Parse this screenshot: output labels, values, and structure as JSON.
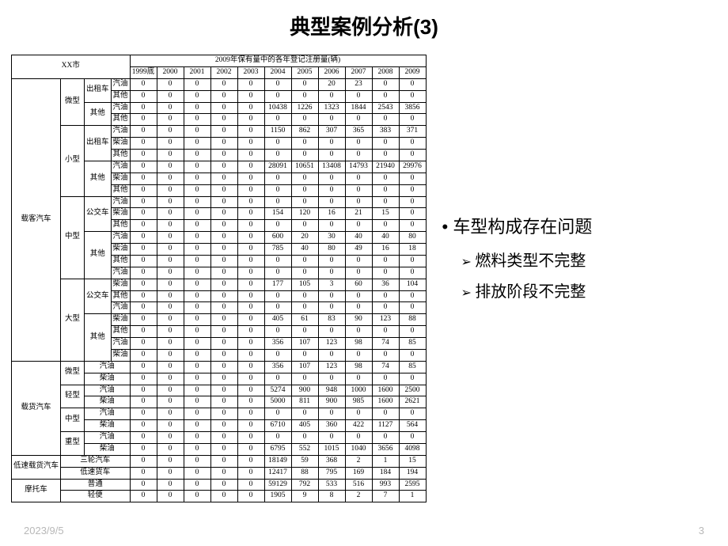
{
  "title": "典型案例分析(3)",
  "footer": {
    "date": "2023/9/5",
    "page": "3"
  },
  "bullets": {
    "main": "车型构成存在问题",
    "subs": [
      "燃料类型不完整",
      "排放阶段不完整"
    ]
  },
  "table": {
    "corner": "XX市",
    "super_header": "2009年保有量中的各年登记注册量(辆)",
    "years": [
      "1999底",
      "2000",
      "2001",
      "2002",
      "2003",
      "2004",
      "2005",
      "2006",
      "2007",
      "2008",
      "2009"
    ],
    "fuels": {
      "gas": "汽油",
      "diesel": "柴油",
      "other": "其他"
    },
    "groups": [
      {
        "cat1": "载客汽车",
        "cat1_rows": 24,
        "subs": [
          {
            "cat2": "微型",
            "cat2_rows": 4,
            "subs": [
              {
                "cat3": "出租车",
                "cat3_rows": 2,
                "rows": [
                  {
                    "f": "汽油",
                    "v": [
                      0,
                      0,
                      0,
                      0,
                      0,
                      0,
                      0,
                      20,
                      23,
                      0,
                      0
                    ]
                  },
                  {
                    "f": "其他",
                    "v": [
                      0,
                      0,
                      0,
                      0,
                      0,
                      0,
                      0,
                      0,
                      0,
                      0,
                      0
                    ]
                  }
                ]
              },
              {
                "cat3": "其他",
                "cat3_rows": 2,
                "rows": [
                  {
                    "f": "汽油",
                    "v": [
                      0,
                      0,
                      0,
                      0,
                      0,
                      10438,
                      1226,
                      1323,
                      1844,
                      2543,
                      3856
                    ]
                  },
                  {
                    "f": "其他",
                    "v": [
                      0,
                      0,
                      0,
                      0,
                      0,
                      0,
                      0,
                      0,
                      0,
                      0,
                      0
                    ]
                  }
                ]
              }
            ]
          },
          {
            "cat2": "小型",
            "cat2_rows": 6,
            "subs": [
              {
                "cat3": "出租车",
                "cat3_rows": 3,
                "rows": [
                  {
                    "f": "汽油",
                    "v": [
                      0,
                      0,
                      0,
                      0,
                      0,
                      1150,
                      862,
                      307,
                      365,
                      383,
                      371
                    ]
                  },
                  {
                    "f": "柴油",
                    "v": [
                      0,
                      0,
                      0,
                      0,
                      0,
                      0,
                      0,
                      0,
                      0,
                      0,
                      0
                    ]
                  },
                  {
                    "f": "其他",
                    "v": [
                      0,
                      0,
                      0,
                      0,
                      0,
                      0,
                      0,
                      0,
                      0,
                      0,
                      0
                    ]
                  }
                ]
              },
              {
                "cat3": "其他",
                "cat3_rows": 3,
                "rows": [
                  {
                    "f": "汽油",
                    "v": [
                      0,
                      0,
                      0,
                      0,
                      0,
                      28091,
                      10651,
                      13408,
                      14793,
                      21940,
                      29976
                    ]
                  },
                  {
                    "f": "柴油",
                    "v": [
                      0,
                      0,
                      0,
                      0,
                      0,
                      0,
                      0,
                      0,
                      0,
                      0,
                      0
                    ]
                  },
                  {
                    "f": "其他",
                    "v": [
                      0,
                      0,
                      0,
                      0,
                      0,
                      0,
                      0,
                      0,
                      0,
                      0,
                      0
                    ]
                  }
                ]
              }
            ]
          },
          {
            "cat2": "中型",
            "cat2_rows": 7,
            "subs": [
              {
                "cat3": "公交车",
                "cat3_rows": 3,
                "rows": [
                  {
                    "f": "汽油",
                    "v": [
                      0,
                      0,
                      0,
                      0,
                      0,
                      0,
                      0,
                      0,
                      0,
                      0,
                      0
                    ]
                  },
                  {
                    "f": "柴油",
                    "v": [
                      0,
                      0,
                      0,
                      0,
                      0,
                      154,
                      120,
                      16,
                      21,
                      15,
                      0
                    ]
                  },
                  {
                    "f": "其他",
                    "v": [
                      0,
                      0,
                      0,
                      0,
                      0,
                      0,
                      0,
                      0,
                      0,
                      0,
                      0
                    ]
                  }
                ]
              },
              {
                "cat3": "其他",
                "cat3_rows": 4,
                "rows": [
                  {
                    "f": "汽油",
                    "v": [
                      0,
                      0,
                      0,
                      0,
                      0,
                      600,
                      20,
                      30,
                      40,
                      40,
                      80
                    ]
                  },
                  {
                    "f": "柴油",
                    "v": [
                      0,
                      0,
                      0,
                      0,
                      0,
                      785,
                      40,
                      80,
                      49,
                      16,
                      18
                    ]
                  },
                  {
                    "f": "其他",
                    "v": [
                      0,
                      0,
                      0,
                      0,
                      0,
                      0,
                      0,
                      0,
                      0,
                      0,
                      0
                    ]
                  },
                  {
                    "f": "汽油",
                    "v": [
                      0,
                      0,
                      0,
                      0,
                      0,
                      0,
                      0,
                      0,
                      0,
                      0,
                      0
                    ]
                  }
                ]
              }
            ]
          },
          {
            "cat2": "大型",
            "cat2_rows": 7,
            "subs": [
              {
                "cat3": "公交车",
                "cat3_rows": 3,
                "rows": [
                  {
                    "f": "柴油",
                    "v": [
                      0,
                      0,
                      0,
                      0,
                      0,
                      177,
                      105,
                      3,
                      60,
                      36,
                      104
                    ]
                  },
                  {
                    "f": "其他",
                    "v": [
                      0,
                      0,
                      0,
                      0,
                      0,
                      0,
                      0,
                      0,
                      0,
                      0,
                      0
                    ]
                  },
                  {
                    "f": "汽油",
                    "v": [
                      0,
                      0,
                      0,
                      0,
                      0,
                      0,
                      0,
                      0,
                      0,
                      0,
                      0
                    ]
                  }
                ]
              },
              {
                "cat3": "其他",
                "cat3_rows": 4,
                "rows": [
                  {
                    "f": "柴油",
                    "v": [
                      0,
                      0,
                      0,
                      0,
                      0,
                      405,
                      61,
                      83,
                      90,
                      123,
                      88
                    ]
                  },
                  {
                    "f": "其他",
                    "v": [
                      0,
                      0,
                      0,
                      0,
                      0,
                      0,
                      0,
                      0,
                      0,
                      0,
                      0
                    ]
                  },
                  {
                    "f": "汽油",
                    "v": [
                      0,
                      0,
                      0,
                      0,
                      0,
                      356,
                      107,
                      123,
                      98,
                      74,
                      85
                    ]
                  },
                  {
                    "f": "柴油",
                    "v": [
                      0,
                      0,
                      0,
                      0,
                      0,
                      0,
                      0,
                      0,
                      0,
                      0,
                      0
                    ]
                  }
                ]
              }
            ]
          }
        ]
      },
      {
        "cat1": "载货汽车",
        "cat1_rows": 8,
        "subs": [
          {
            "cat2": "微型",
            "cat2_rows": 2,
            "subs": [
              {
                "cat3": "",
                "cat3_rows": 2,
                "merge": true,
                "rows": [
                  {
                    "f": "汽油",
                    "v": [
                      0,
                      0,
                      0,
                      0,
                      0,
                      356,
                      107,
                      123,
                      98,
                      74,
                      85
                    ]
                  },
                  {
                    "f": "柴油",
                    "v": [
                      0,
                      0,
                      0,
                      0,
                      0,
                      0,
                      0,
                      0,
                      0,
                      0,
                      0
                    ]
                  }
                ]
              }
            ]
          },
          {
            "cat2": "轻型",
            "cat2_rows": 2,
            "subs": [
              {
                "cat3": "",
                "cat3_rows": 2,
                "merge": true,
                "rows": [
                  {
                    "f": "汽油",
                    "v": [
                      0,
                      0,
                      0,
                      0,
                      0,
                      5274,
                      900,
                      948,
                      1000,
                      1600,
                      2500
                    ]
                  },
                  {
                    "f": "柴油",
                    "v": [
                      0,
                      0,
                      0,
                      0,
                      0,
                      5000,
                      811,
                      900,
                      985,
                      1600,
                      2621
                    ]
                  }
                ]
              }
            ]
          },
          {
            "cat2": "中型",
            "cat2_rows": 2,
            "subs": [
              {
                "cat3": "",
                "cat3_rows": 2,
                "merge": true,
                "rows": [
                  {
                    "f": "汽油",
                    "v": [
                      0,
                      0,
                      0,
                      0,
                      0,
                      0,
                      0,
                      0,
                      0,
                      0,
                      0
                    ]
                  },
                  {
                    "f": "柴油",
                    "v": [
                      0,
                      0,
                      0,
                      0,
                      0,
                      6710,
                      405,
                      360,
                      422,
                      1127,
                      564
                    ]
                  }
                ]
              }
            ]
          },
          {
            "cat2": "重型",
            "cat2_rows": 2,
            "subs": [
              {
                "cat3": "",
                "cat3_rows": 2,
                "merge": true,
                "rows": [
                  {
                    "f": "汽油",
                    "v": [
                      0,
                      0,
                      0,
                      0,
                      0,
                      0,
                      0,
                      0,
                      0,
                      0,
                      0
                    ]
                  },
                  {
                    "f": "柴油",
                    "v": [
                      0,
                      0,
                      0,
                      0,
                      0,
                      6795,
                      552,
                      1015,
                      1040,
                      3656,
                      4098
                    ]
                  }
                ]
              }
            ]
          }
        ]
      },
      {
        "cat1": "低速载货汽车",
        "cat1_rows": 2,
        "subs": [
          {
            "cat2": "三轮汽车",
            "cat2_rows": 1,
            "full": true,
            "rows": [
              {
                "v": [
                  0,
                  0,
                  0,
                  0,
                  0,
                  18149,
                  59,
                  368,
                  2,
                  1,
                  15
                ]
              }
            ]
          },
          {
            "cat2": "低速货车",
            "cat2_rows": 1,
            "full": true,
            "rows": [
              {
                "v": [
                  0,
                  0,
                  0,
                  0,
                  0,
                  12417,
                  88,
                  795,
                  169,
                  184,
                  194
                ]
              }
            ]
          }
        ]
      },
      {
        "cat1": "摩托车",
        "cat1_rows": 2,
        "subs": [
          {
            "cat2": "普通",
            "cat2_rows": 1,
            "full": true,
            "rows": [
              {
                "v": [
                  0,
                  0,
                  0,
                  0,
                  0,
                  59129,
                  792,
                  533,
                  516,
                  993,
                  2595
                ]
              }
            ]
          },
          {
            "cat2": "轻便",
            "cat2_rows": 1,
            "full": true,
            "rows": [
              {
                "v": [
                  0,
                  0,
                  0,
                  0,
                  0,
                  1905,
                  9,
                  8,
                  2,
                  7,
                  1
                ]
              }
            ]
          }
        ]
      }
    ]
  }
}
